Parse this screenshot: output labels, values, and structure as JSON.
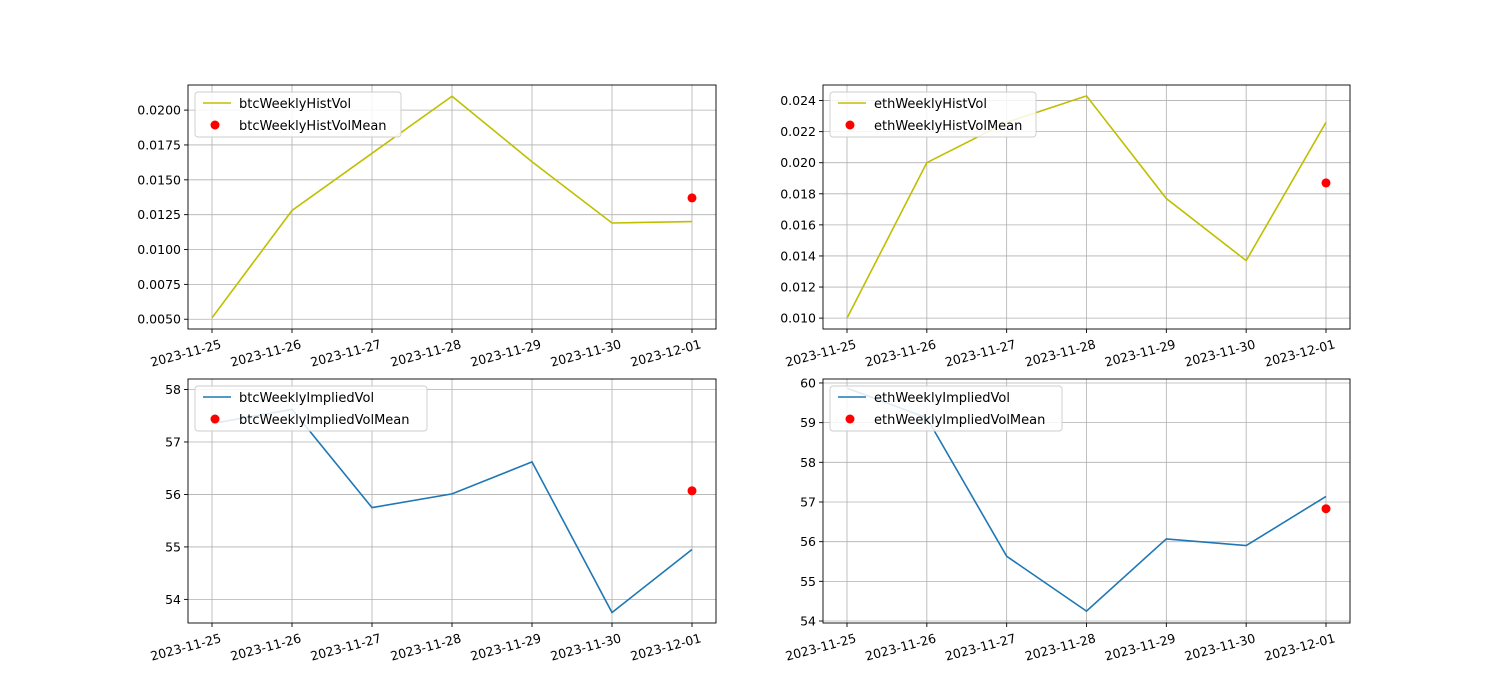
{
  "chart_data": [
    {
      "type": "line",
      "x": [
        "2023-11-25",
        "2023-11-26",
        "2023-11-27",
        "2023-11-28",
        "2023-11-29",
        "2023-11-30",
        "2023-12-01"
      ],
      "series": [
        {
          "name": "btcWeeklyHistVol",
          "color": "#bfbf00",
          "values": [
            0.0051,
            0.0128,
            0.0169,
            0.021,
            0.0163,
            0.0119,
            0.012
          ]
        },
        {
          "name": "btcWeeklyHistVolMean",
          "type": "scatter",
          "color": "#ff0000",
          "points": [
            {
              "x": "2023-12-01",
              "y": 0.0137
            }
          ]
        }
      ],
      "yticks": [
        "0.0050",
        "0.0075",
        "0.0100",
        "0.0125",
        "0.0150",
        "0.0175",
        "0.0200"
      ],
      "ylim": [
        0.0043,
        0.0218
      ],
      "grid": true,
      "legend": "upper-left"
    },
    {
      "type": "line",
      "x": [
        "2023-11-25",
        "2023-11-26",
        "2023-11-27",
        "2023-11-28",
        "2023-11-29",
        "2023-11-30",
        "2023-12-01"
      ],
      "series": [
        {
          "name": "ethWeeklyHistVol",
          "color": "#bfbf00",
          "values": [
            0.01,
            0.02,
            0.0226,
            0.0243,
            0.0177,
            0.0137,
            0.0226
          ]
        },
        {
          "name": "ethWeeklyHistVolMean",
          "type": "scatter",
          "color": "#ff0000",
          "points": [
            {
              "x": "2023-12-01",
              "y": 0.0187
            }
          ]
        }
      ],
      "yticks": [
        "0.010",
        "0.012",
        "0.014",
        "0.016",
        "0.018",
        "0.020",
        "0.022",
        "0.024"
      ],
      "ylim": [
        0.0093,
        0.025
      ],
      "grid": true,
      "legend": "upper-left"
    },
    {
      "type": "line",
      "x": [
        "2023-11-25",
        "2023-11-26",
        "2023-11-27",
        "2023-11-28",
        "2023-11-29",
        "2023-11-30",
        "2023-12-01"
      ],
      "series": [
        {
          "name": "btcWeeklyImpliedVol",
          "color": "#1f77b4",
          "values": [
            57.35,
            57.62,
            55.75,
            56.01,
            56.62,
            53.75,
            54.95
          ]
        },
        {
          "name": "btcWeeklyImpliedVolMean",
          "type": "scatter",
          "color": "#ff0000",
          "points": [
            {
              "x": "2023-12-01",
              "y": 56.07
            }
          ]
        }
      ],
      "yticks": [
        "54",
        "55",
        "56",
        "57",
        "58"
      ],
      "ylim": [
        53.55,
        58.2
      ],
      "grid": true,
      "legend": "upper-left"
    },
    {
      "type": "line",
      "x": [
        "2023-11-25",
        "2023-11-26",
        "2023-11-27",
        "2023-11-28",
        "2023-11-29",
        "2023-11-30",
        "2023-12-01"
      ],
      "series": [
        {
          "name": "ethWeeklyImpliedVol",
          "color": "#1f77b4",
          "values": [
            59.87,
            59.12,
            55.63,
            54.25,
            56.07,
            55.9,
            57.14
          ]
        },
        {
          "name": "ethWeeklyImpliedVolMean",
          "type": "scatter",
          "color": "#ff0000",
          "points": [
            {
              "x": "2023-12-01",
              "y": 56.83
            }
          ]
        }
      ],
      "yticks": [
        "54",
        "55",
        "56",
        "57",
        "58",
        "59",
        "60"
      ],
      "ylim": [
        53.95,
        60.1
      ],
      "grid": true,
      "legend": "upper-left"
    }
  ]
}
